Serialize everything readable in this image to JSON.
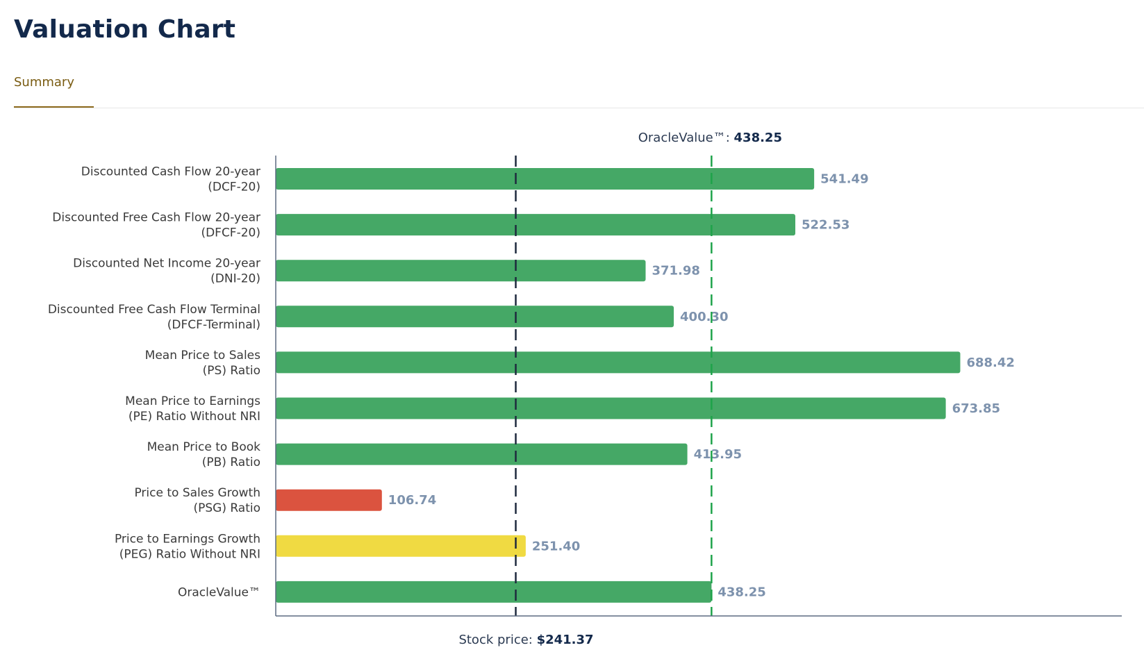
{
  "page": {
    "title": "Valuation Chart",
    "tabs": [
      {
        "label": "Summary",
        "active": true
      }
    ]
  },
  "colors": {
    "good": "#45a866",
    "bad": "#db533f",
    "neutral": "#f0da42",
    "oracle_line": "#1ea34a",
    "price_line": "#1e2a3e",
    "value_label": "#7d92ad",
    "axis": "#5b6a80",
    "title": "#13294b",
    "tab_accent": "#8c6a1c"
  },
  "chart_data": {
    "type": "bar",
    "orientation": "horizontal",
    "title": "Valuation Chart",
    "xlabel": "",
    "ylabel": "",
    "xlim": [
      0,
      810
    ],
    "grid": false,
    "categories": [
      [
        "Discounted Cash Flow 20-year",
        "(DCF-20)"
      ],
      [
        "Discounted Free Cash Flow 20-year",
        "(DFCF-20)"
      ],
      [
        "Discounted Net Income 20-year",
        "(DNI-20)"
      ],
      [
        "Discounted Free Cash Flow Terminal",
        "(DFCF-Terminal)"
      ],
      [
        "Mean Price to Sales",
        "(PS) Ratio"
      ],
      [
        "Mean Price to Earnings",
        "(PE) Ratio Without NRI"
      ],
      [
        "Mean Price to Book",
        "(PB) Ratio"
      ],
      [
        "Price to Sales Growth",
        "(PSG) Ratio"
      ],
      [
        "Price to Earnings Growth",
        "(PEG) Ratio Without NRI"
      ],
      [
        "OracleValue™"
      ]
    ],
    "values": [
      541.49,
      522.53,
      371.98,
      400.3,
      688.42,
      673.85,
      413.95,
      106.74,
      251.4,
      438.25
    ],
    "value_labels": [
      "541.49",
      "522.53",
      "371.98",
      "400.30",
      "688.42",
      "673.85",
      "413.95",
      "106.74",
      "251.40",
      "438.25"
    ],
    "bar_status": [
      "good",
      "good",
      "good",
      "good",
      "good",
      "good",
      "good",
      "bad",
      "neutral",
      "good"
    ],
    "reference_lines": {
      "oracle_value": {
        "label": "OracleValue™: ",
        "value": 438.25,
        "value_text": "438.25",
        "position": "top"
      },
      "stock_price": {
        "label": "Stock price: ",
        "value": 241.37,
        "value_text": "$241.37",
        "position": "bottom"
      }
    }
  }
}
